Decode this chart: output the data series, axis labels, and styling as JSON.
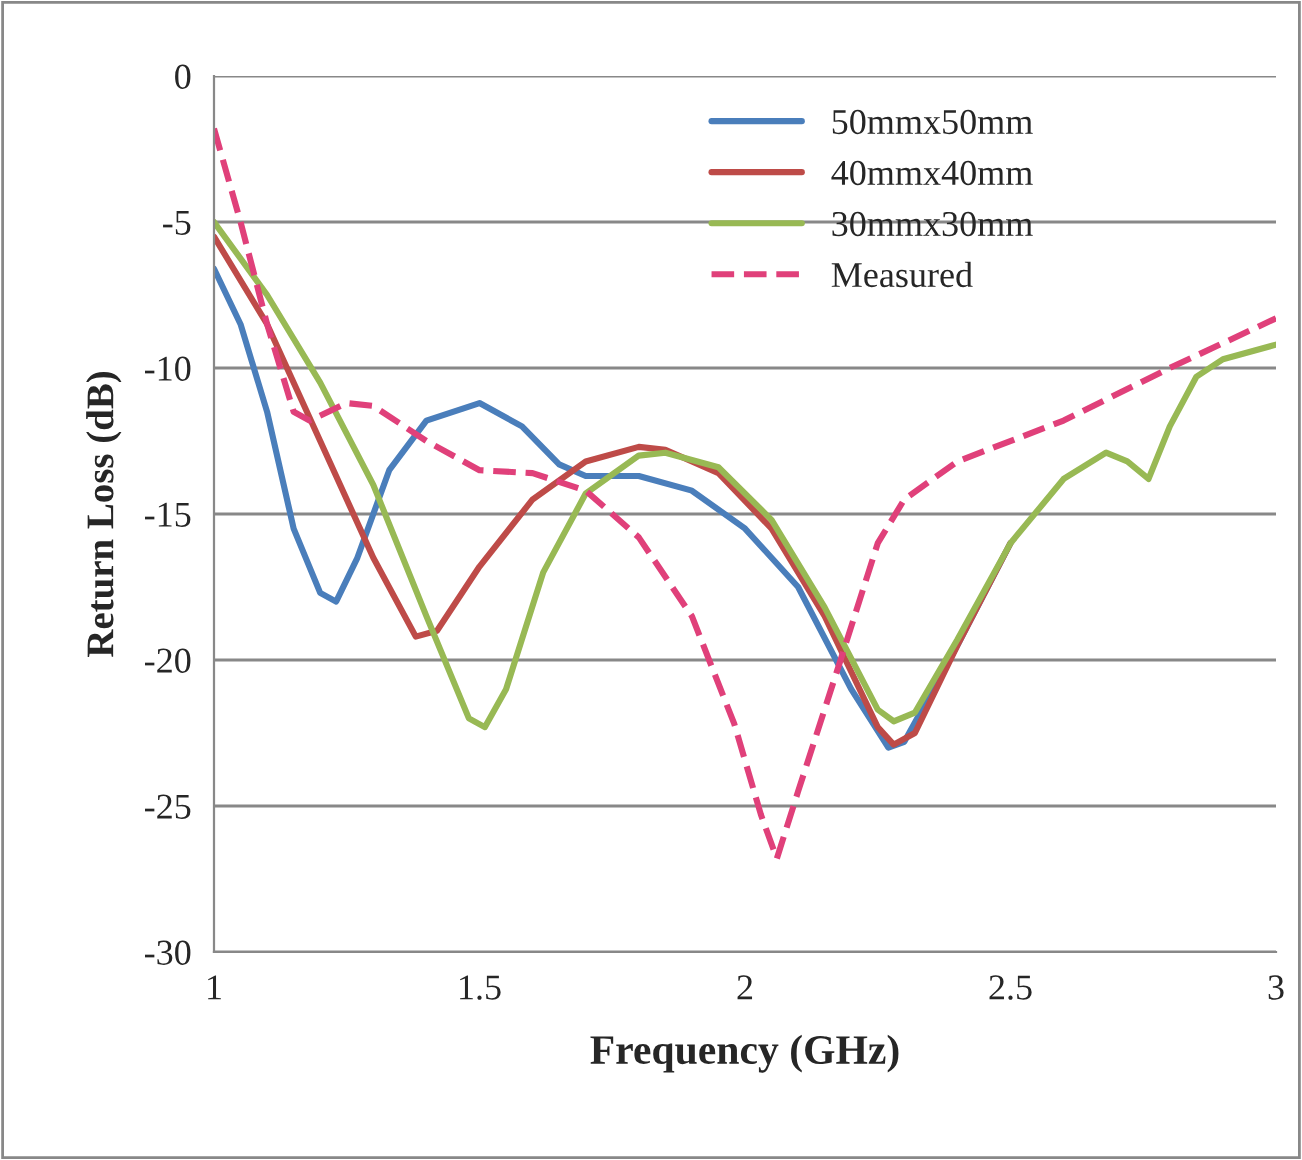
{
  "chart_data": {
    "type": "line",
    "xlabel": "Frequency (GHz)",
    "ylabel": "Return Loss (dB)",
    "xlim": [
      1,
      3
    ],
    "xticks": [
      1,
      1.5,
      2,
      2.5,
      3
    ],
    "ylim": [
      -30,
      0
    ],
    "yticks": [
      -30,
      -25,
      -20,
      -15,
      -10,
      -5,
      0
    ],
    "grid": "y",
    "legend": "top",
    "line_style": "solid",
    "series": [
      {
        "name": "50mmx50mm",
        "color": "#4a7ebb",
        "x": [
          1,
          1.05,
          1.1,
          1.15,
          1.2,
          1.23,
          1.27,
          1.33,
          1.4,
          1.5,
          1.58,
          1.65,
          1.7,
          1.8,
          1.9,
          2.0,
          2.1,
          2.2,
          2.27,
          2.3,
          2.4,
          2.5
        ],
        "values": [
          -6.6,
          -8.5,
          -11.5,
          -15.5,
          -17.7,
          -18,
          -16.5,
          -13.5,
          -11.8,
          -11.2,
          -12,
          -13.3,
          -13.7,
          -13.7,
          -14.2,
          -15.5,
          -17.5,
          -21,
          -23,
          -22.8,
          -19.5,
          -16
        ]
      },
      {
        "name": "40mmx40mm",
        "color": "#be4b48",
        "x": [
          1,
          1.1,
          1.2,
          1.3,
          1.38,
          1.42,
          1.5,
          1.6,
          1.7,
          1.8,
          1.85,
          1.95,
          2.05,
          2.15,
          2.25,
          2.28,
          2.32,
          2.4,
          2.5
        ],
        "values": [
          -5.5,
          -8.5,
          -12.5,
          -16.5,
          -19.2,
          -19,
          -16.8,
          -14.5,
          -13.2,
          -12.7,
          -12.8,
          -13.6,
          -15.5,
          -18.5,
          -22.3,
          -22.9,
          -22.5,
          -19.5,
          -16
        ]
      },
      {
        "name": "30mmx30mm",
        "color": "#98b954",
        "x": [
          1,
          1.1,
          1.2,
          1.3,
          1.4,
          1.48,
          1.51,
          1.55,
          1.62,
          1.7,
          1.8,
          1.85,
          1.95,
          2.05,
          2.15,
          2.25,
          2.28,
          2.32,
          2.4,
          2.5,
          2.6,
          2.68,
          2.72,
          2.76,
          2.8,
          2.85,
          2.9,
          3.0
        ],
        "values": [
          -5,
          -7.5,
          -10.5,
          -14,
          -18.5,
          -22,
          -22.3,
          -21,
          -17,
          -14.3,
          -13,
          -12.9,
          -13.4,
          -15.2,
          -18.2,
          -21.7,
          -22.1,
          -21.8,
          -19.3,
          -16,
          -13.8,
          -12.9,
          -13.2,
          -13.8,
          -12,
          -10.3,
          -9.7,
          -9.2
        ]
      },
      {
        "name": "Measured",
        "color": "#e0407a",
        "line_style": "dashed",
        "x": [
          1,
          1.05,
          1.1,
          1.15,
          1.18,
          1.25,
          1.3,
          1.4,
          1.5,
          1.6,
          1.7,
          1.8,
          1.9,
          1.98,
          2.03,
          2.06,
          2.1,
          2.18,
          2.25,
          2.3,
          2.4,
          2.6,
          2.8,
          3.0
        ],
        "values": [
          -1.8,
          -5,
          -8.5,
          -11.5,
          -11.8,
          -11.2,
          -11.3,
          -12.5,
          -13.5,
          -13.6,
          -14.2,
          -15.8,
          -18.5,
          -22.2,
          -25.3,
          -26.8,
          -24.5,
          -20,
          -16,
          -14.5,
          -13.2,
          -11.8,
          -10,
          -8.3
        ]
      }
    ]
  }
}
